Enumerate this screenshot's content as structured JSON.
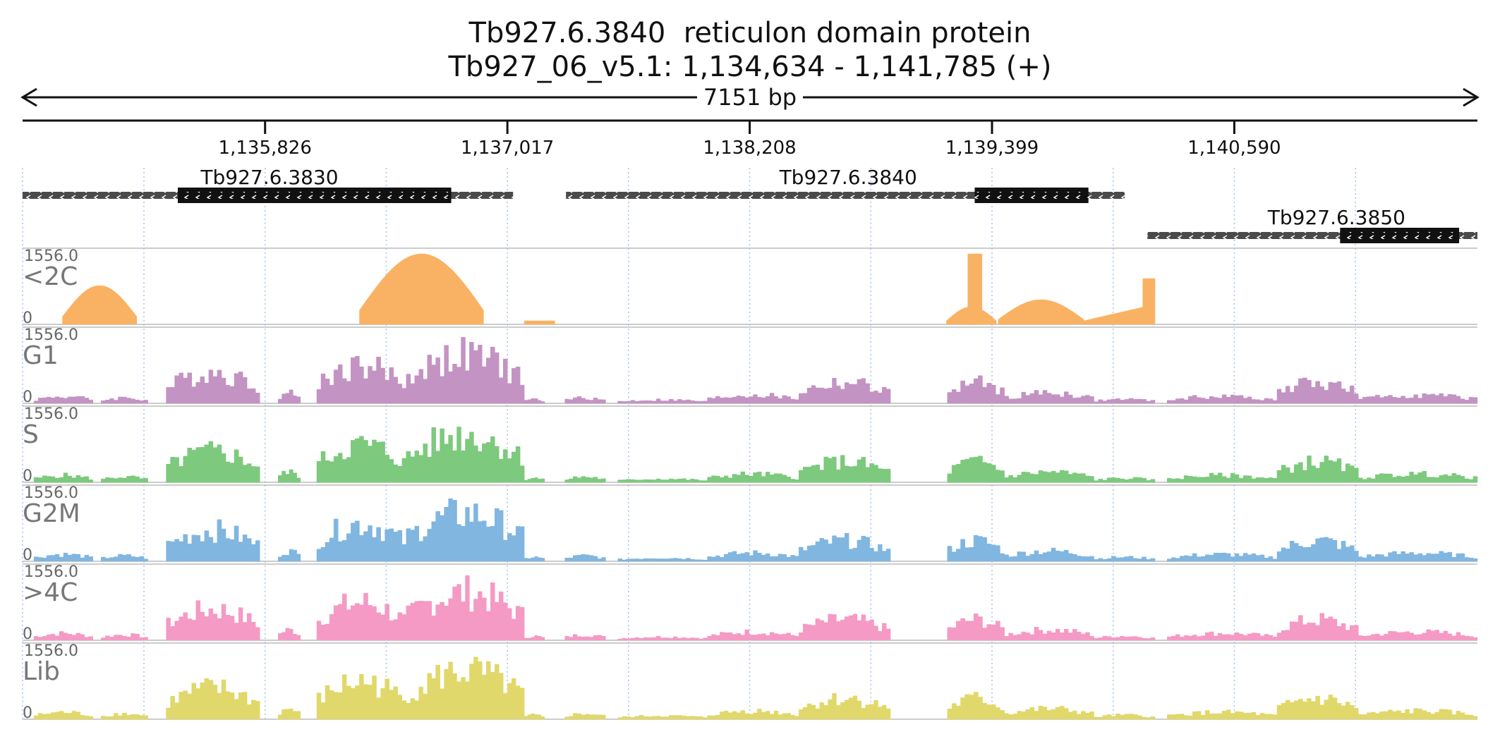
{
  "title": {
    "line1": "Tb927.6.3840  reticulon domain protein",
    "line2": "Tb927_06_v5.1: 1,134,634 - 1,141,785 (+)"
  },
  "region": {
    "start": 1134634,
    "end": 1141785,
    "length_label": "7151 bp"
  },
  "ruler": {
    "ticks": [
      {
        "pos": 1135826,
        "label": "1,135,826"
      },
      {
        "pos": 1137017,
        "label": "1,137,017"
      },
      {
        "pos": 1138208,
        "label": "1,138,208"
      },
      {
        "pos": 1139399,
        "label": "1,139,399"
      },
      {
        "pos": 1140590,
        "label": "1,140,590"
      }
    ]
  },
  "genes": [
    {
      "id": "Tb927.6.3830",
      "start": 1134634,
      "end": 1137045,
      "cds_start": 1135397,
      "cds_end": 1136741,
      "row": 0,
      "strand": "-"
    },
    {
      "id": "Tb927.6.3840",
      "start": 1137305,
      "end": 1140051,
      "cds_start": 1139314,
      "cds_end": 1139873,
      "row": 0,
      "strand": "-"
    },
    {
      "id": "Tb927.6.3850",
      "start": 1140163,
      "end": 1141785,
      "cds_start": 1141110,
      "cds_end": 1141695,
      "row": 1,
      "strand": "-"
    }
  ],
  "tracks": [
    {
      "name": "<2C",
      "color": "#f9b263",
      "ymax_label": "1556.0",
      "ymin_label": "0",
      "ymax": 1556
    },
    {
      "name": "G1",
      "color": "#c393c3",
      "ymax_label": "1556.0",
      "ymin_label": "0",
      "ymax": 1556
    },
    {
      "name": "S",
      "color": "#7dc97d",
      "ymax_label": "1556.0",
      "ymin_label": "0",
      "ymax": 1556
    },
    {
      "name": "G2M",
      "color": "#80b6e0",
      "ymax_label": "1556.0",
      "ymin_label": "0",
      "ymax": 1556
    },
    {
      "name": ">4C",
      "color": "#f49ac4",
      "ymax_label": "1556.0",
      "ymin_label": "0",
      "ymax": 1556
    },
    {
      "name": "Lib",
      "color": "#e0d86a",
      "ymax_label": "1556.0",
      "ymin_label": "0",
      "ymax": 1556
    }
  ]
}
